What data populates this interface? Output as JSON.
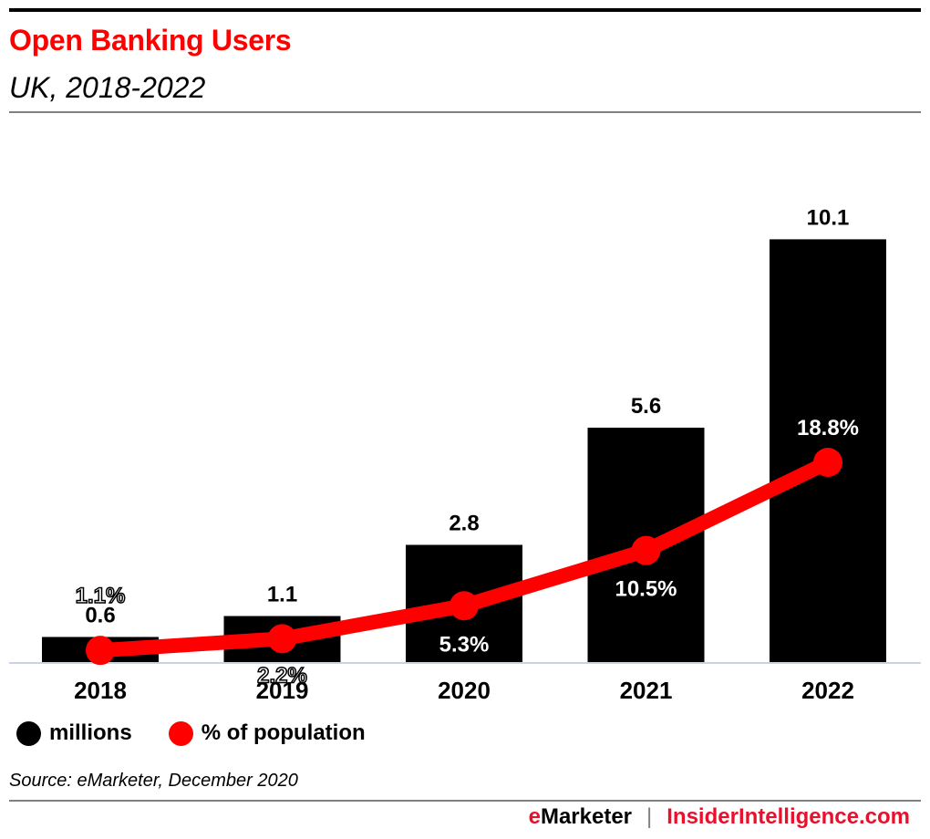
{
  "header": {
    "title": "Open Banking Users",
    "subtitle": "UK, 2018-2022"
  },
  "chart_data": {
    "type": "bar",
    "title": "Open Banking Users",
    "subtitle": "UK, 2018-2022",
    "categories": [
      "2018",
      "2019",
      "2020",
      "2021",
      "2022"
    ],
    "series": [
      {
        "name": "millions",
        "type": "bar",
        "color": "#000000",
        "values": [
          0.6,
          1.1,
          2.8,
          5.6,
          10.1
        ],
        "labels": [
          "0.6",
          "1.1",
          "2.8",
          "5.6",
          "10.1"
        ]
      },
      {
        "name": "% of population",
        "type": "line",
        "color": "#ff0000",
        "values": [
          1.1,
          2.2,
          5.3,
          10.5,
          18.8
        ],
        "labels": [
          "1.1%",
          "2.2%",
          "5.3%",
          "10.5%",
          "18.8%"
        ]
      }
    ],
    "xlabel": "",
    "ylabel": "",
    "grid": false,
    "legend_position": "bottom-left"
  },
  "legend": {
    "items": [
      {
        "label": "millions",
        "color": "#000000"
      },
      {
        "label": "% of population",
        "color": "#ff0000"
      }
    ]
  },
  "source": "Source: eMarketer, December 2020",
  "footer": {
    "brand_e": "e",
    "brand_rest": "Marketer",
    "separator": "|",
    "site": "InsiderIntelligence.com"
  }
}
